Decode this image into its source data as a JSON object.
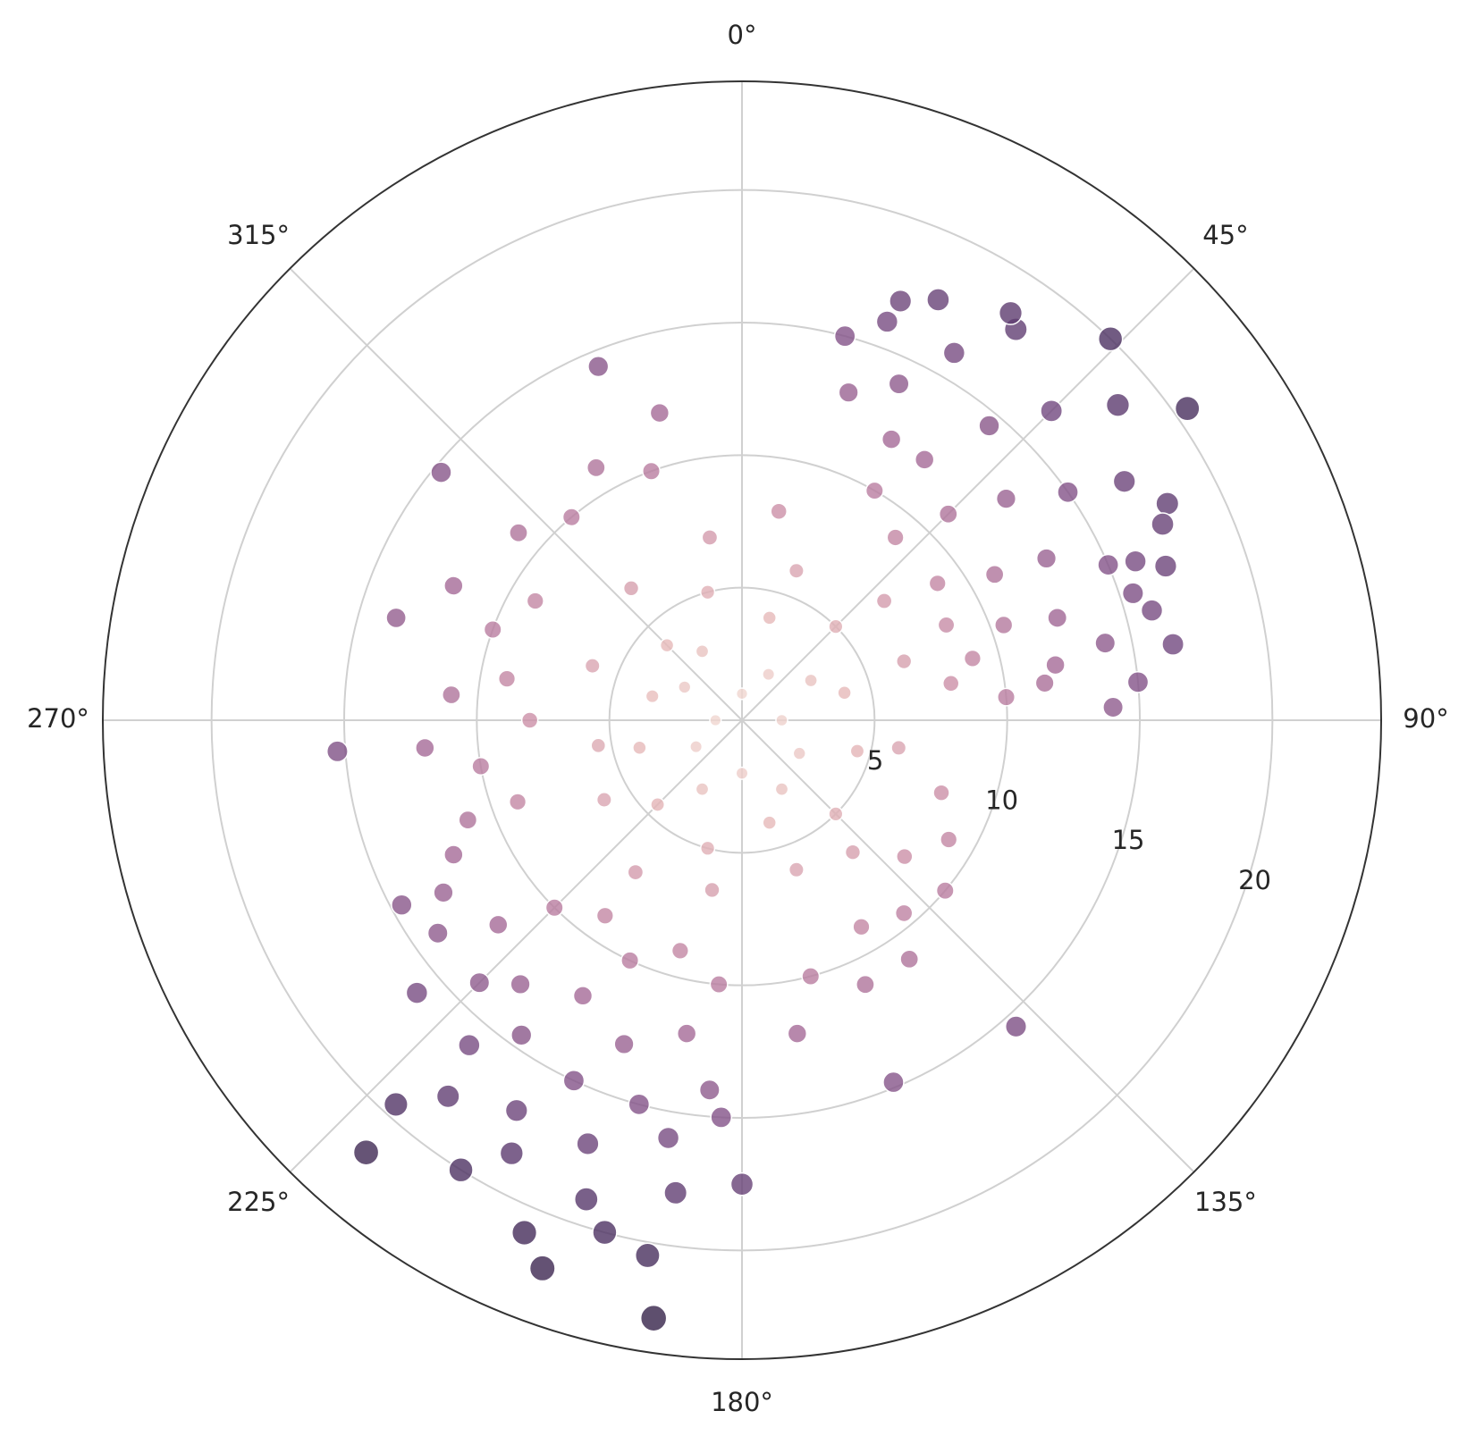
{
  "chart_data": {
    "type": "polar-scatter",
    "theta_direction": "clockwise",
    "theta_zero": "N",
    "rlim": [
      0,
      24.1
    ],
    "rticks": [
      5,
      10,
      15,
      20
    ],
    "rlabel_angle": 107.5,
    "thetaticks": [
      {
        "value": 0,
        "label": "0°"
      },
      {
        "value": 45,
        "label": "45°"
      },
      {
        "value": 90,
        "label": "90°"
      },
      {
        "value": 135,
        "label": "135°"
      },
      {
        "value": 180,
        "label": "180°"
      },
      {
        "value": 225,
        "label": "225°"
      },
      {
        "value": 270,
        "label": "270°"
      },
      {
        "value": 315,
        "label": "315°"
      }
    ],
    "grid": true,
    "palette": [
      "#f3e0d8",
      "#e6b9b9",
      "#cc90a8",
      "#a56a97",
      "#774b82",
      "#4c3162",
      "#2c1c3e"
    ],
    "series": [
      {
        "theta": [
          0,
          30,
          60,
          90,
          120,
          150,
          180,
          210,
          240,
          270,
          300,
          330,
          15,
          45,
          75,
          105,
          135,
          165,
          195,
          225,
          255,
          285,
          315,
          345,
          20,
          50,
          70,
          100,
          140,
          160,
          190,
          215,
          240,
          260,
          290,
          320,
          350,
          10,
          130,
          150,
          40,
          55,
          65,
          75,
          80,
          30,
          45,
          60,
          70,
          85,
          35,
          50,
          62,
          72,
          80,
          25,
          40,
          55,
          67,
          78,
          30,
          45,
          58,
          70,
          75,
          20,
          35,
          50,
          63,
          68,
          25,
          44,
          55,
          65,
          72,
          83,
          88,
          15,
          18,
          28,
          20.7,
          33.4,
          80,
          84.5,
          185,
          195,
          205,
          215,
          225,
          190,
          200,
          210,
          220,
          230,
          185,
          195,
          205,
          215,
          225,
          190,
          200,
          210,
          220,
          230,
          188,
          198,
          208,
          218,
          195,
          203,
          212,
          222,
          200,
          190,
          180,
          183,
          235,
          240,
          245,
          250,
          188.4,
          221,
          265.6,
          337.9,
          309.5,
          138.2,
          157.3,
          286.5,
          241.5,
          270,
          280,
          260,
          290,
          300,
          320,
          330,
          340,
          250,
          265,
          275,
          295,
          310,
          345,
          120,
          130,
          140,
          145,
          155,
          165,
          170,
          110
        ],
        "r": [
          1,
          2,
          3,
          1.5,
          2.5,
          3,
          2,
          3,
          2,
          1,
          2.5,
          3,
          4,
          5,
          4,
          4.5,
          5,
          4,
          5,
          4.5,
          4,
          3.5,
          4,
          5,
          6,
          7,
          6.5,
          6,
          6.5,
          6,
          6.5,
          7,
          6,
          5.5,
          6,
          6.5,
          7,
          8,
          8,
          9,
          9,
          9,
          8.5,
          9,
          8,
          10,
          11,
          11,
          10.5,
          10,
          12,
          13,
          13,
          12.5,
          12,
          14,
          14.5,
          15,
          15,
          14,
          16,
          16.5,
          17,
          17,
          16,
          16,
          18,
          18.5,
          18,
          16,
          17.5,
          20,
          20.5,
          17.5,
          15.5,
          11.5,
          14,
          15,
          13,
          12,
          16.9,
          18.4,
          16.5,
          15,
          10,
          9,
          10,
          9,
          10,
          12,
          13,
          12,
          13,
          12,
          14,
          15,
          15,
          14.5,
          14,
          16,
          17,
          17,
          16,
          16,
          18,
          19,
          18.5,
          18,
          20,
          21,
          20,
          19.5,
          22,
          20.5,
          17.5,
          15,
          14,
          13,
          12,
          11,
          22.8,
          21.6,
          15.3,
          14.4,
          14.7,
          15.5,
          14.8,
          13.6,
          14.6,
          8,
          9,
          10,
          10,
          9,
          10,
          11,
          10,
          9,
          12,
          11,
          12,
          11,
          12,
          9,
          10,
          9.5,
          11,
          11,
          10,
          12,
          8
        ]
      }
    ]
  }
}
